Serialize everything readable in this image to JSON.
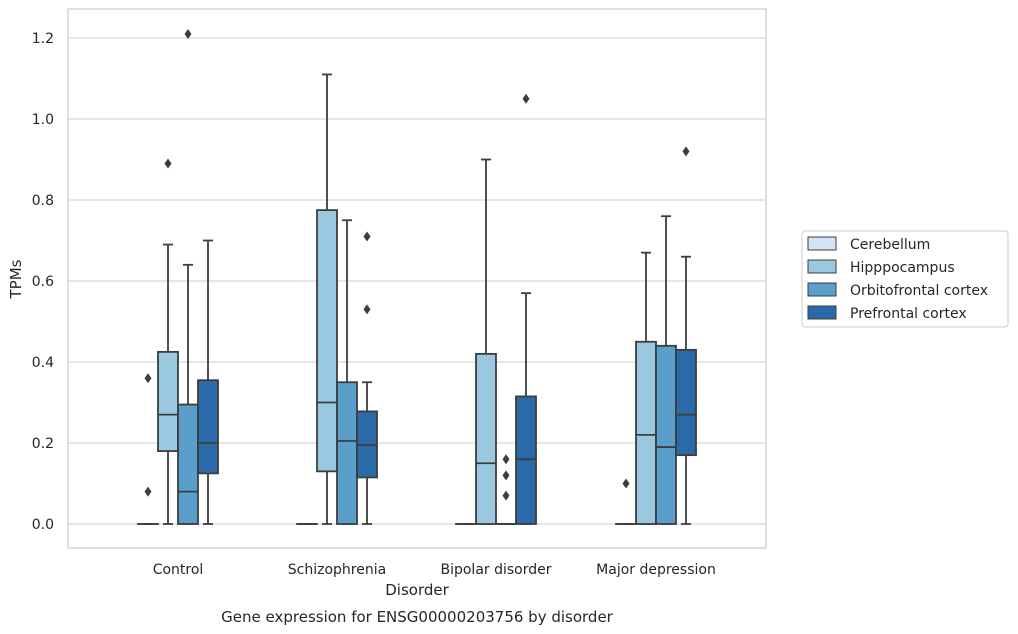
{
  "caption": "Gene expression for ENSG00000203756 by disorder",
  "chart_data": {
    "type": "box",
    "xlabel": "Disorder",
    "ylabel": "TPMs",
    "ylim": [
      -0.06,
      1.27
    ],
    "yticks": [
      0.0,
      0.2,
      0.4,
      0.6,
      0.8,
      1.0,
      1.2
    ],
    "ytick_labels": [
      "0.0",
      "0.2",
      "0.4",
      "0.6",
      "0.8",
      "1.0",
      "1.2"
    ],
    "grid": "horizontal",
    "legend_position": "right",
    "categories": [
      "Control",
      "Schizophrenia",
      "Bipolar disorder",
      "Major depression"
    ],
    "series": [
      {
        "name": "Cerebellum",
        "color": "#d2e3f3",
        "boxes": [
          {
            "q1": 0.0,
            "median": 0.0,
            "q3": 0.0,
            "whisker_low": 0.0,
            "whisker_high": 0.0,
            "outliers": [
              0.08,
              0.36
            ]
          },
          {
            "q1": 0.0,
            "median": 0.0,
            "q3": 0.0,
            "whisker_low": 0.0,
            "whisker_high": 0.0,
            "outliers": []
          },
          {
            "q1": 0.0,
            "median": 0.0,
            "q3": 0.0,
            "whisker_low": 0.0,
            "whisker_high": 0.0,
            "outliers": []
          },
          {
            "q1": 0.0,
            "median": 0.0,
            "q3": 0.0,
            "whisker_low": 0.0,
            "whisker_high": 0.0,
            "outliers": [
              0.1
            ]
          }
        ]
      },
      {
        "name": "Hipppocampus",
        "color": "#9ac8e0",
        "boxes": [
          {
            "q1": 0.18,
            "median": 0.27,
            "q3": 0.425,
            "whisker_low": 0.0,
            "whisker_high": 0.69,
            "outliers": [
              0.89
            ]
          },
          {
            "q1": 0.13,
            "median": 0.3,
            "q3": 0.775,
            "whisker_low": 0.0,
            "whisker_high": 1.11,
            "outliers": []
          },
          {
            "q1": 0.0,
            "median": 0.15,
            "q3": 0.42,
            "whisker_low": 0.0,
            "whisker_high": 0.9,
            "outliers": []
          },
          {
            "q1": 0.0,
            "median": 0.22,
            "q3": 0.45,
            "whisker_low": 0.0,
            "whisker_high": 0.67,
            "outliers": []
          }
        ]
      },
      {
        "name": "Orbitofrontal cortex",
        "color": "#5a9ecc",
        "boxes": [
          {
            "q1": 0.0,
            "median": 0.08,
            "q3": 0.295,
            "whisker_low": 0.0,
            "whisker_high": 0.64,
            "outliers": [
              1.21
            ]
          },
          {
            "q1": 0.0,
            "median": 0.205,
            "q3": 0.35,
            "whisker_low": 0.0,
            "whisker_high": 0.75,
            "outliers": []
          },
          {
            "q1": 0.0,
            "median": 0.0,
            "q3": 0.0,
            "whisker_low": 0.0,
            "whisker_high": 0.0,
            "outliers": [
              0.07,
              0.12,
              0.16
            ]
          },
          {
            "q1": 0.0,
            "median": 0.19,
            "q3": 0.44,
            "whisker_low": 0.0,
            "whisker_high": 0.76,
            "outliers": []
          }
        ]
      },
      {
        "name": "Prefrontal cortex",
        "color": "#2a6aa8",
        "boxes": [
          {
            "q1": 0.125,
            "median": 0.2,
            "q3": 0.355,
            "whisker_low": 0.0,
            "whisker_high": 0.7,
            "outliers": []
          },
          {
            "q1": 0.115,
            "median": 0.195,
            "q3": 0.278,
            "whisker_low": 0.0,
            "whisker_high": 0.35,
            "outliers": [
              0.53,
              0.71
            ]
          },
          {
            "q1": 0.0,
            "median": 0.16,
            "q3": 0.315,
            "whisker_low": 0.0,
            "whisker_high": 0.57,
            "outliers": [
              1.05
            ]
          },
          {
            "q1": 0.17,
            "median": 0.27,
            "q3": 0.43,
            "whisker_low": 0.0,
            "whisker_high": 0.66,
            "outliers": [
              0.92
            ]
          }
        ]
      }
    ]
  }
}
